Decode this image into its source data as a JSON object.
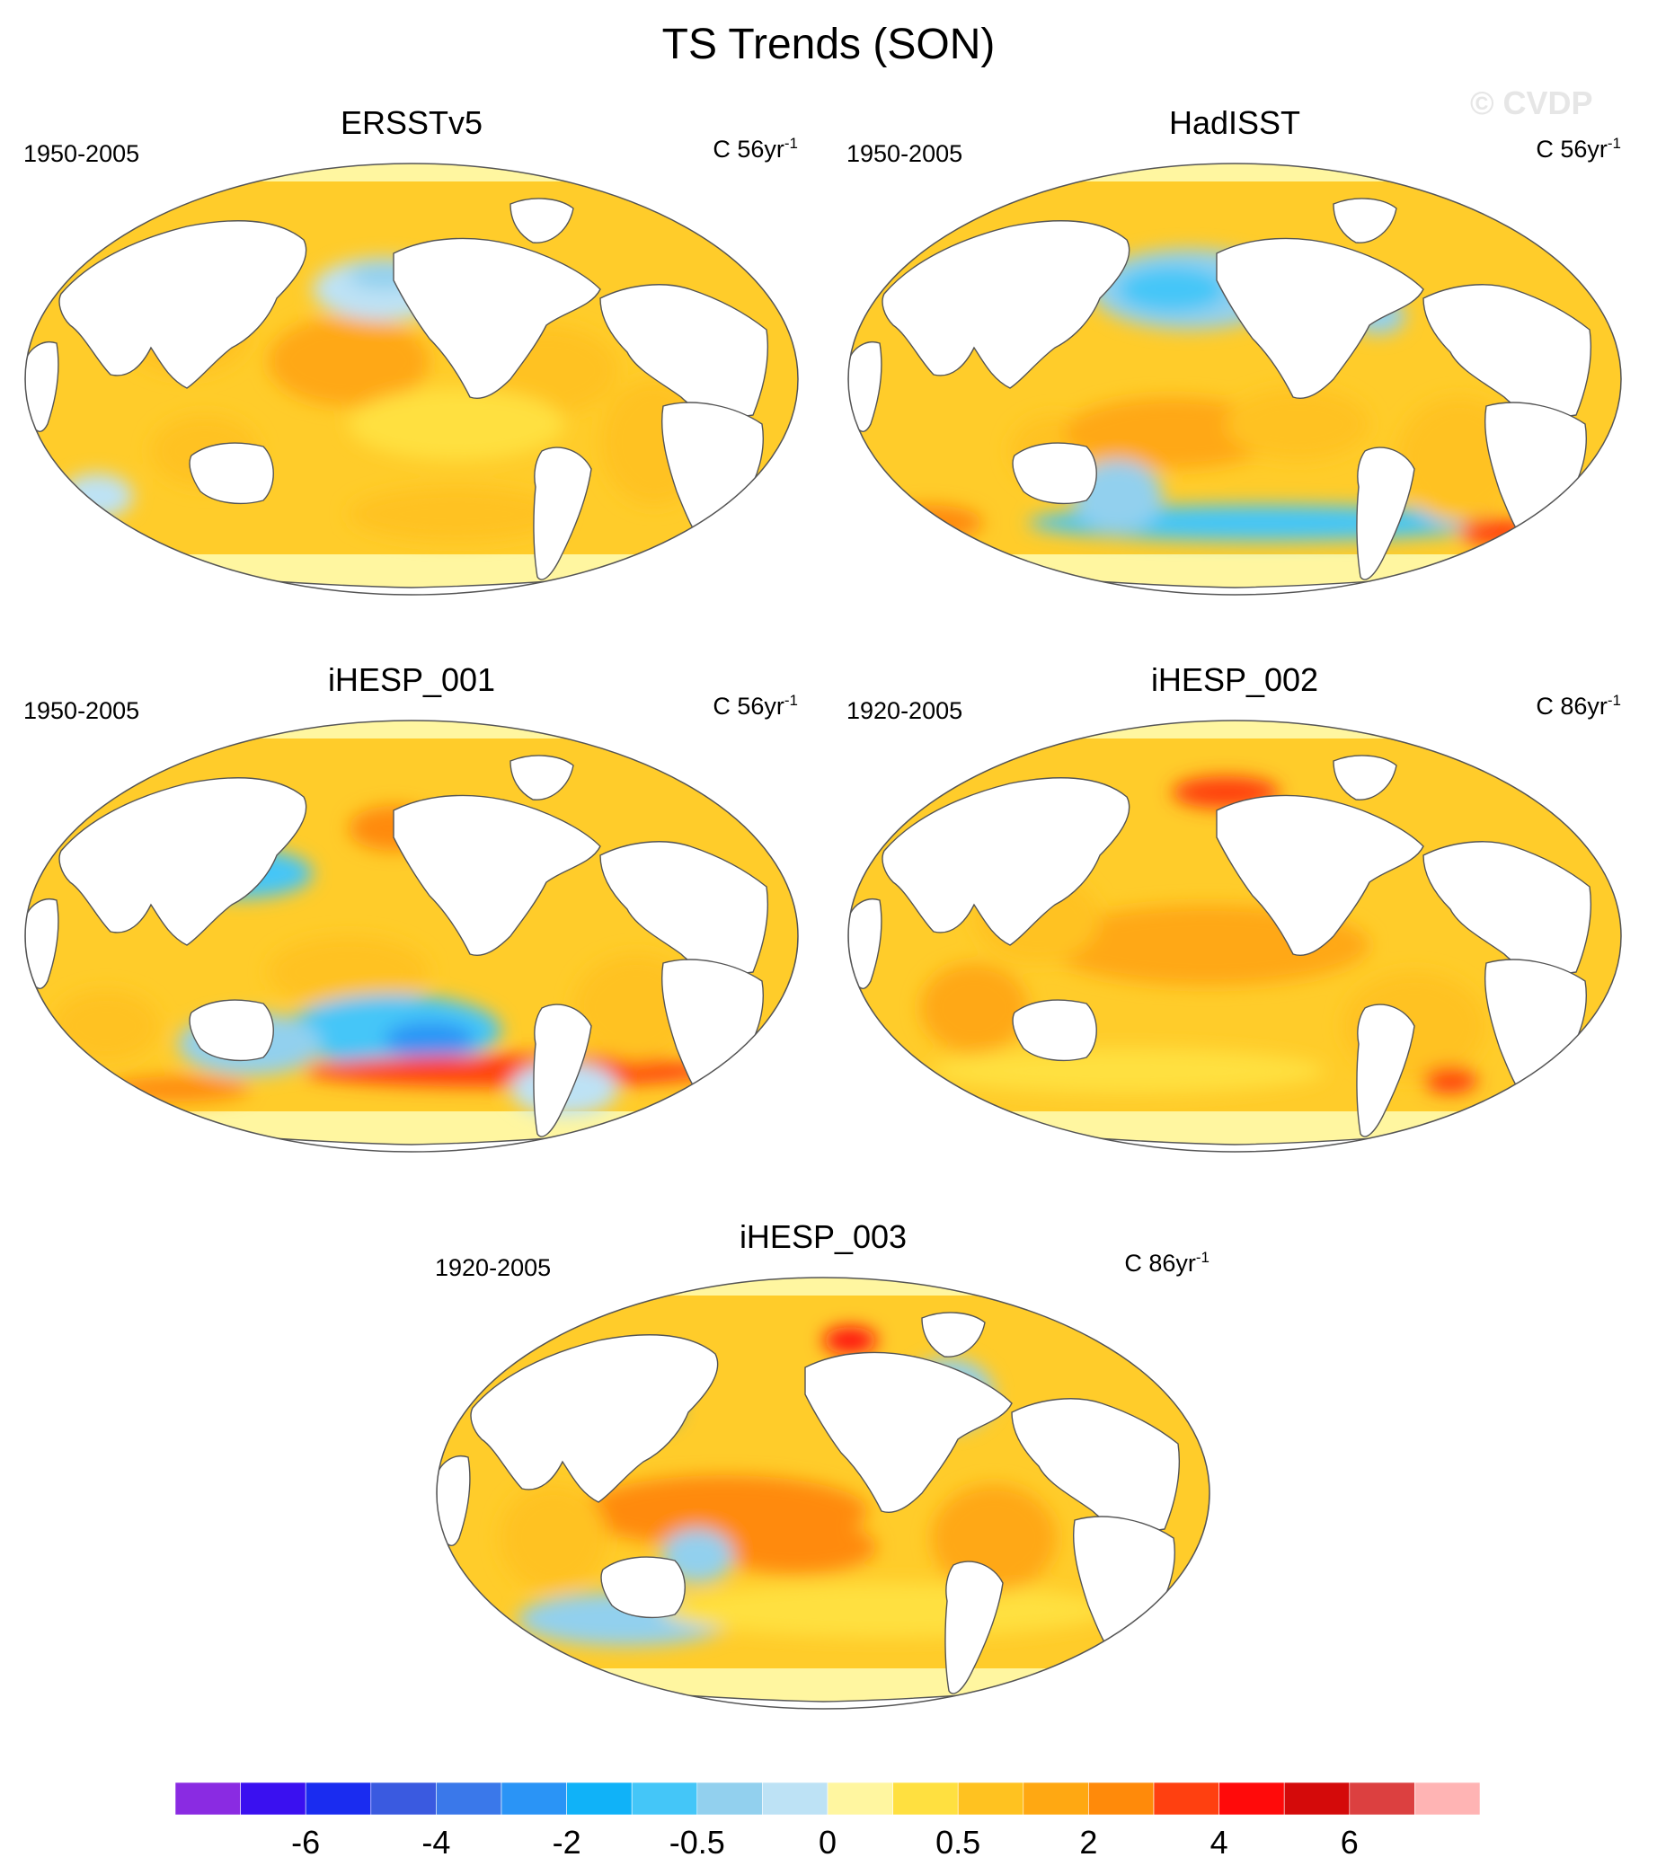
{
  "figure": {
    "title": "TS Trends (SON)",
    "watermark": "© CVDP"
  },
  "panels": [
    {
      "name": "ERSSTv5",
      "period": "1950-2005",
      "units_prefix": "C 56yr",
      "units_exp": "-1",
      "pattern": "ersst"
    },
    {
      "name": "HadISST",
      "period": "1950-2005",
      "units_prefix": "C 56yr",
      "units_exp": "-1",
      "pattern": "hadisst"
    },
    {
      "name": "iHESP_001",
      "period": "1950-2005",
      "units_prefix": "C 56yr",
      "units_exp": "-1",
      "pattern": "ihesp1"
    },
    {
      "name": "iHESP_002",
      "period": "1920-2005",
      "units_prefix": "C 86yr",
      "units_exp": "-1",
      "pattern": "ihesp2"
    },
    {
      "name": "iHESP_003",
      "period": "1920-2005",
      "units_prefix": "C 86yr",
      "units_exp": "-1",
      "pattern": "ihesp3"
    }
  ],
  "colorbar": {
    "colors": [
      "#8a2be2",
      "#3a10f0",
      "#1a2cf0",
      "#3a5ae0",
      "#3a78ea",
      "#2a94f6",
      "#10b2f8",
      "#44c6f8",
      "#92d0ee",
      "#bde2f5",
      "#fff6a0",
      "#ffe040",
      "#ffc220",
      "#ffa812",
      "#ff8a0a",
      "#ff4010",
      "#ff0a0a",
      "#d40a0a",
      "#dc4040",
      "#ffb4b4"
    ],
    "tick_labels": [
      "-6",
      "-4",
      "-2",
      "-0.5",
      "0",
      "0.5",
      "2",
      "4",
      "6"
    ],
    "tick_boundaries": [
      2,
      4,
      6,
      8,
      10,
      12,
      14,
      16,
      18
    ]
  }
}
